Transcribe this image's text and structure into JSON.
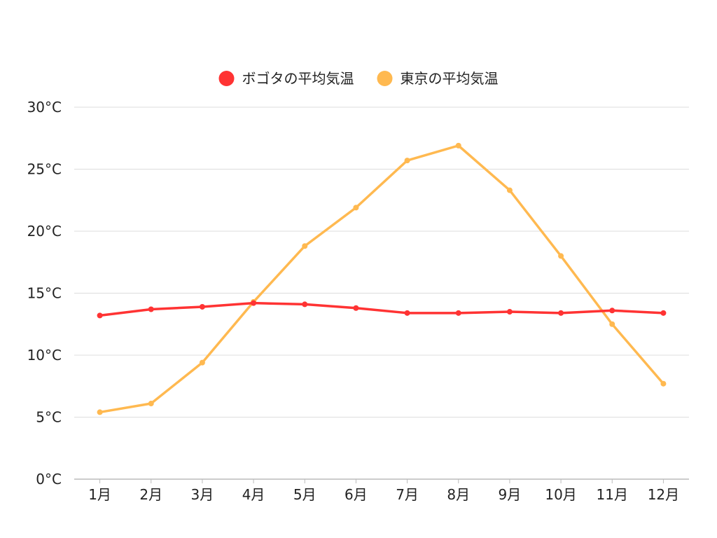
{
  "chart_data": {
    "type": "line",
    "categories": [
      "1月",
      "2月",
      "3月",
      "4月",
      "5月",
      "6月",
      "7月",
      "8月",
      "9月",
      "10月",
      "11月",
      "12月"
    ],
    "y_ticks": [
      "0°C",
      "5°C",
      "10°C",
      "15°C",
      "20°C",
      "25°C",
      "30°C"
    ],
    "ylim": [
      0,
      30
    ],
    "grid": true,
    "legend_position": "top-center",
    "series": [
      {
        "name": "ボゴタの平均気温",
        "color": "#ff3333",
        "values": [
          13.2,
          13.7,
          13.9,
          14.2,
          14.1,
          13.8,
          13.4,
          13.4,
          13.5,
          13.4,
          13.6,
          13.4
        ]
      },
      {
        "name": "東京の平均気温",
        "color": "#ffb950",
        "values": [
          5.4,
          6.1,
          9.4,
          14.3,
          18.8,
          21.9,
          25.7,
          26.9,
          23.3,
          18.0,
          12.5,
          7.7
        ]
      }
    ]
  }
}
